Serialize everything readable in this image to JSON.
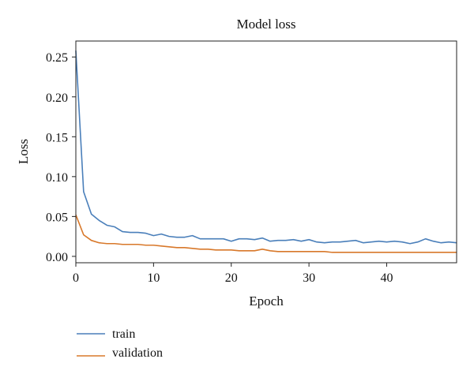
{
  "chart_data": {
    "type": "line",
    "title": "Model loss",
    "xlabel": "Epoch",
    "ylabel": "Loss",
    "xlim": [
      0,
      49
    ],
    "ylim": [
      -0.008,
      0.27
    ],
    "x_ticks": [
      0,
      10,
      20,
      30,
      40
    ],
    "y_ticks": [
      0.0,
      0.05,
      0.1,
      0.15,
      0.2,
      0.25
    ],
    "y_tick_labels": [
      "0.00",
      "0.05",
      "0.10",
      "0.15",
      "0.20",
      "0.25"
    ],
    "grid": false,
    "legend_position": "bottom-left, below plot",
    "series": [
      {
        "name": "train",
        "color": "#4a7fba",
        "x": [
          0,
          1,
          2,
          3,
          4,
          5,
          6,
          7,
          8,
          9,
          10,
          11,
          12,
          13,
          14,
          15,
          16,
          17,
          18,
          19,
          20,
          21,
          22,
          23,
          24,
          25,
          26,
          27,
          28,
          29,
          30,
          31,
          32,
          33,
          34,
          35,
          36,
          37,
          38,
          39,
          40,
          41,
          42,
          43,
          44,
          45,
          46,
          47,
          48,
          49
        ],
        "values": [
          0.258,
          0.081,
          0.053,
          0.045,
          0.039,
          0.037,
          0.031,
          0.03,
          0.03,
          0.029,
          0.026,
          0.028,
          0.025,
          0.024,
          0.024,
          0.026,
          0.022,
          0.022,
          0.022,
          0.022,
          0.019,
          0.022,
          0.022,
          0.021,
          0.023,
          0.019,
          0.02,
          0.02,
          0.021,
          0.019,
          0.021,
          0.018,
          0.017,
          0.018,
          0.018,
          0.019,
          0.02,
          0.017,
          0.018,
          0.019,
          0.018,
          0.019,
          0.018,
          0.016,
          0.018,
          0.022,
          0.019,
          0.017,
          0.018,
          0.017
        ]
      },
      {
        "name": "validation",
        "color": "#d8782a",
        "x": [
          0,
          1,
          2,
          3,
          4,
          5,
          6,
          7,
          8,
          9,
          10,
          11,
          12,
          13,
          14,
          15,
          16,
          17,
          18,
          19,
          20,
          21,
          22,
          23,
          24,
          25,
          26,
          27,
          28,
          29,
          30,
          31,
          32,
          33,
          34,
          35,
          36,
          37,
          38,
          39,
          40,
          41,
          42,
          43,
          44,
          45,
          46,
          47,
          48,
          49
        ],
        "values": [
          0.052,
          0.027,
          0.02,
          0.017,
          0.016,
          0.016,
          0.015,
          0.015,
          0.015,
          0.014,
          0.014,
          0.013,
          0.012,
          0.011,
          0.011,
          0.01,
          0.009,
          0.009,
          0.008,
          0.008,
          0.008,
          0.007,
          0.007,
          0.007,
          0.009,
          0.007,
          0.006,
          0.006,
          0.006,
          0.006,
          0.006,
          0.006,
          0.006,
          0.005,
          0.005,
          0.005,
          0.005,
          0.005,
          0.005,
          0.005,
          0.005,
          0.005,
          0.005,
          0.005,
          0.005,
          0.005,
          0.005,
          0.005,
          0.005,
          0.005
        ]
      }
    ]
  }
}
